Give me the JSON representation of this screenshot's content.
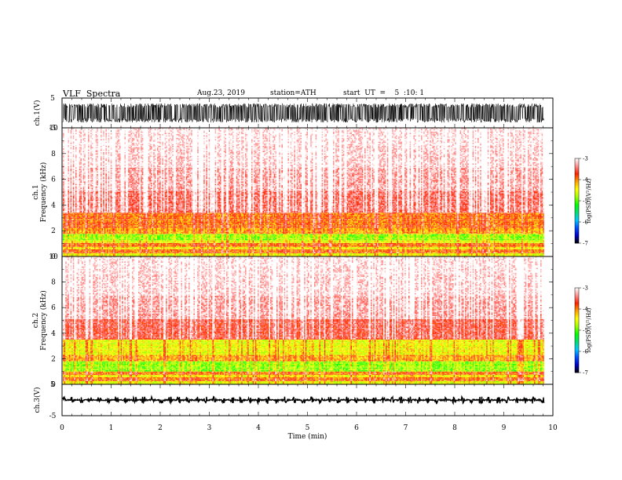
{
  "header": {
    "title": "VLF  Spectra",
    "date": "Aug.23, 2019",
    "station": "station=ATH",
    "start": "start  UT  =    5  :10: 1"
  },
  "chart_data": [
    {
      "type": "line",
      "panel": "ch1-waveform",
      "ylabel": "ch.1(V)",
      "yticks": [
        "5",
        "-5"
      ],
      "ylim": [
        -5,
        5
      ],
      "xlim": [
        0,
        10
      ],
      "data_end_min": 9.82,
      "color": "#000000",
      "description": "dense saturated waveform filling roughly ±3 V"
    },
    {
      "type": "heatmap",
      "panel": "ch1-spectrogram",
      "ylabel": "ch.1",
      "ylabel2": "Frequency  (kHz)",
      "yticks": [
        "0",
        "2",
        "4",
        "6",
        "8",
        "10"
      ],
      "ylim": [
        0,
        10
      ],
      "xlim": [
        0,
        10
      ],
      "data_end_min": 9.82,
      "bands": [
        {
          "f0": 0.0,
          "f1": 0.25,
          "level": -4.6
        },
        {
          "f0": 0.25,
          "f1": 0.55,
          "level": -4.0
        },
        {
          "f0": 0.55,
          "f1": 0.75,
          "level": -4.5
        },
        {
          "f0": 0.75,
          "f1": 1.05,
          "level": -4.0
        },
        {
          "f0": 1.05,
          "f1": 1.25,
          "level": -4.6
        },
        {
          "f0": 1.25,
          "f1": 1.75,
          "level": -4.9
        },
        {
          "f0": 1.75,
          "f1": 2.2,
          "level": -4.2
        },
        {
          "f0": 2.2,
          "f1": 3.4,
          "level": -4.0
        },
        {
          "f0": 3.4,
          "f1": 5.1,
          "level": -3.5
        },
        {
          "f0": 5.1,
          "f1": 6.9,
          "level": -3.3
        },
        {
          "f0": 6.9,
          "f1": 8.6,
          "level": -3.15
        },
        {
          "f0": 8.6,
          "f1": 10.0,
          "level": -3.1
        }
      ],
      "colorbar": {
        "label": "log(PSD)(V²/Hz)",
        "ticks": [
          "-3",
          "-4",
          "-5",
          "-6",
          "-7"
        ],
        "range": [
          -7,
          -3
        ]
      }
    },
    {
      "type": "heatmap",
      "panel": "ch2-spectrogram",
      "ylabel": "ch.2",
      "ylabel2": "Frequency  (kHz)",
      "yticks": [
        "0",
        "2",
        "4",
        "6",
        "8",
        "10"
      ],
      "ylim": [
        0,
        10
      ],
      "xlim": [
        0,
        10
      ],
      "data_end_min": 9.82,
      "bands": [
        {
          "f0": 0.0,
          "f1": 0.25,
          "level": -4.6
        },
        {
          "f0": 0.25,
          "f1": 0.55,
          "level": -4.0
        },
        {
          "f0": 0.55,
          "f1": 0.75,
          "level": -4.5
        },
        {
          "f0": 0.75,
          "f1": 1.0,
          "level": -4.0
        },
        {
          "f0": 1.0,
          "f1": 1.8,
          "level": -4.9
        },
        {
          "f0": 1.8,
          "f1": 2.3,
          "level": -4.2
        },
        {
          "f0": 2.3,
          "f1": 3.5,
          "level": -4.55
        },
        {
          "f0": 3.5,
          "f1": 5.1,
          "level": -3.6
        },
        {
          "f0": 5.1,
          "f1": 6.9,
          "level": -3.3
        },
        {
          "f0": 6.9,
          "f1": 8.6,
          "level": -3.15
        },
        {
          "f0": 8.6,
          "f1": 10.0,
          "level": -3.1
        }
      ],
      "colorbar": {
        "label": "log(PSD)(V²/Hz)",
        "ticks": [
          "-3",
          "-4",
          "-5",
          "-6",
          "-7"
        ],
        "range": [
          -7,
          -3
        ]
      }
    },
    {
      "type": "line",
      "panel": "ch3-waveform",
      "ylabel": "ch.3(V)",
      "yticks": [
        "5",
        "-5"
      ],
      "ylim": [
        -5,
        5
      ],
      "xlim": [
        0,
        10
      ],
      "data_end_min": 9.82,
      "color": "#000000",
      "description": "flat trace near 0 V with periodic bursts"
    }
  ],
  "xaxis": {
    "label": "Time  (min)",
    "ticks": [
      "0",
      "1",
      "2",
      "3",
      "4",
      "5",
      "6",
      "7",
      "8",
      "9",
      "10"
    ],
    "range": [
      0,
      10
    ]
  },
  "colors": {
    "colormap": [
      "#000000",
      "#0000c8",
      "#0050ff",
      "#00c8ff",
      "#00e070",
      "#00ff00",
      "#a0ff00",
      "#ffff00",
      "#ffa000",
      "#ff2000",
      "#ff9090",
      "#ffffff"
    ]
  }
}
